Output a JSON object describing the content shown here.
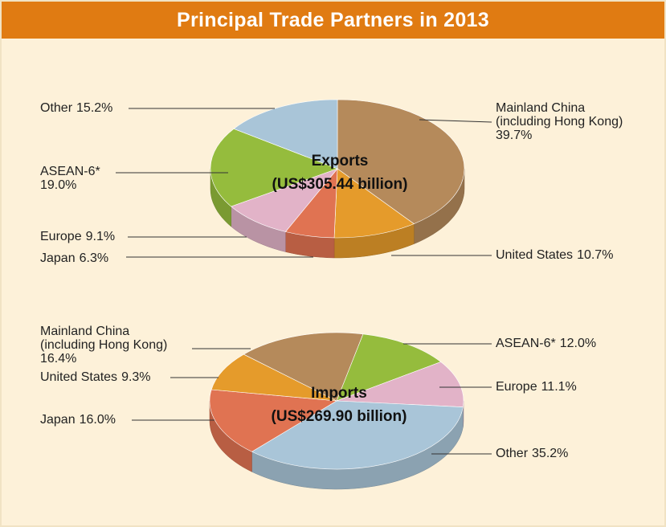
{
  "title": "Principal Trade Partners in 2013",
  "chart_data": [
    {
      "type": "pie",
      "title": "Exports",
      "subtitle": "(US$305.44 billion)",
      "categories": [
        "Mainland China (including Hong Kong)",
        "United States",
        "Japan",
        "Europe",
        "ASEAN-6*",
        "Other"
      ],
      "values": [
        39.7,
        10.7,
        6.3,
        9.1,
        19.0,
        15.2
      ],
      "value_labels": [
        "39.7%",
        "10.7%",
        "6.3%",
        "9.1%",
        "19.0%",
        "15.2%"
      ],
      "colors": [
        "#b58a5b",
        "#e59b2b",
        "#e07352",
        "#e2b3c8",
        "#95bc3d",
        "#a9c5d8"
      ]
    },
    {
      "type": "pie",
      "title": "Imports",
      "subtitle": "(US$269.90 billion)",
      "categories": [
        "ASEAN-6*",
        "Europe",
        "Other",
        "Japan",
        "United States",
        "Mainland China (including Hong Kong)"
      ],
      "values": [
        12.0,
        11.1,
        35.2,
        16.0,
        9.3,
        16.4
      ],
      "value_labels": [
        "12.0%",
        "11.1%",
        "35.2%",
        "16.0%",
        "9.3%",
        "16.4%"
      ],
      "colors": [
        "#95bc3d",
        "#e2b3c8",
        "#a9c5d8",
        "#e07352",
        "#e59b2b",
        "#b58a5b"
      ]
    }
  ]
}
